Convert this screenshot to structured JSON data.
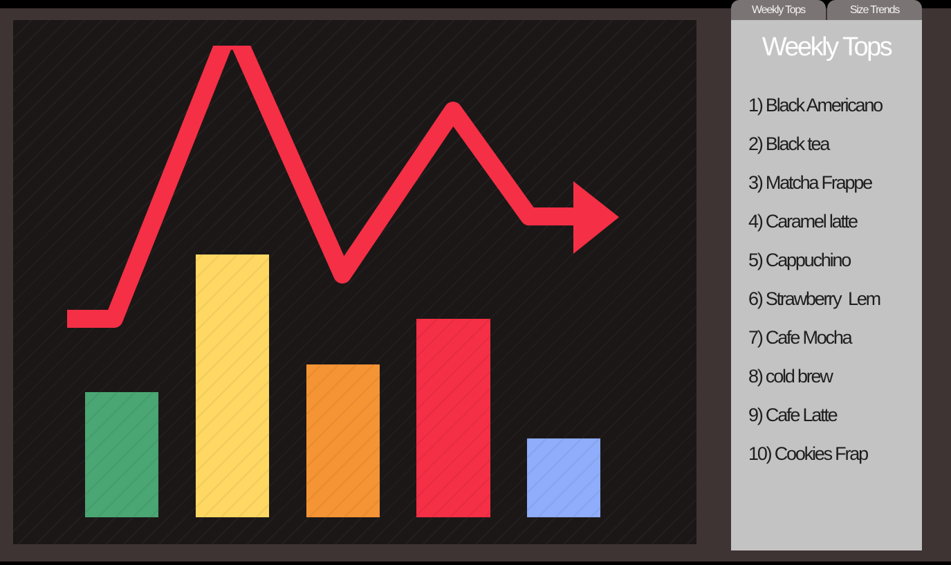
{
  "tabs": [
    "Weekly Tops",
    "Size Trends"
  ],
  "panel": {
    "title": "Weekly Tops",
    "items": [
      "1) Black Americano",
      "2) Black tea",
      "3) Matcha Frappe",
      "4) Caramel latte",
      "5) Cappuchino",
      "6) Strawberry  Lem",
      "7) Cafe Mocha",
      "8) cold brew",
      "9) Cafe Latte",
      "10) Cookies Frap"
    ]
  }
}
